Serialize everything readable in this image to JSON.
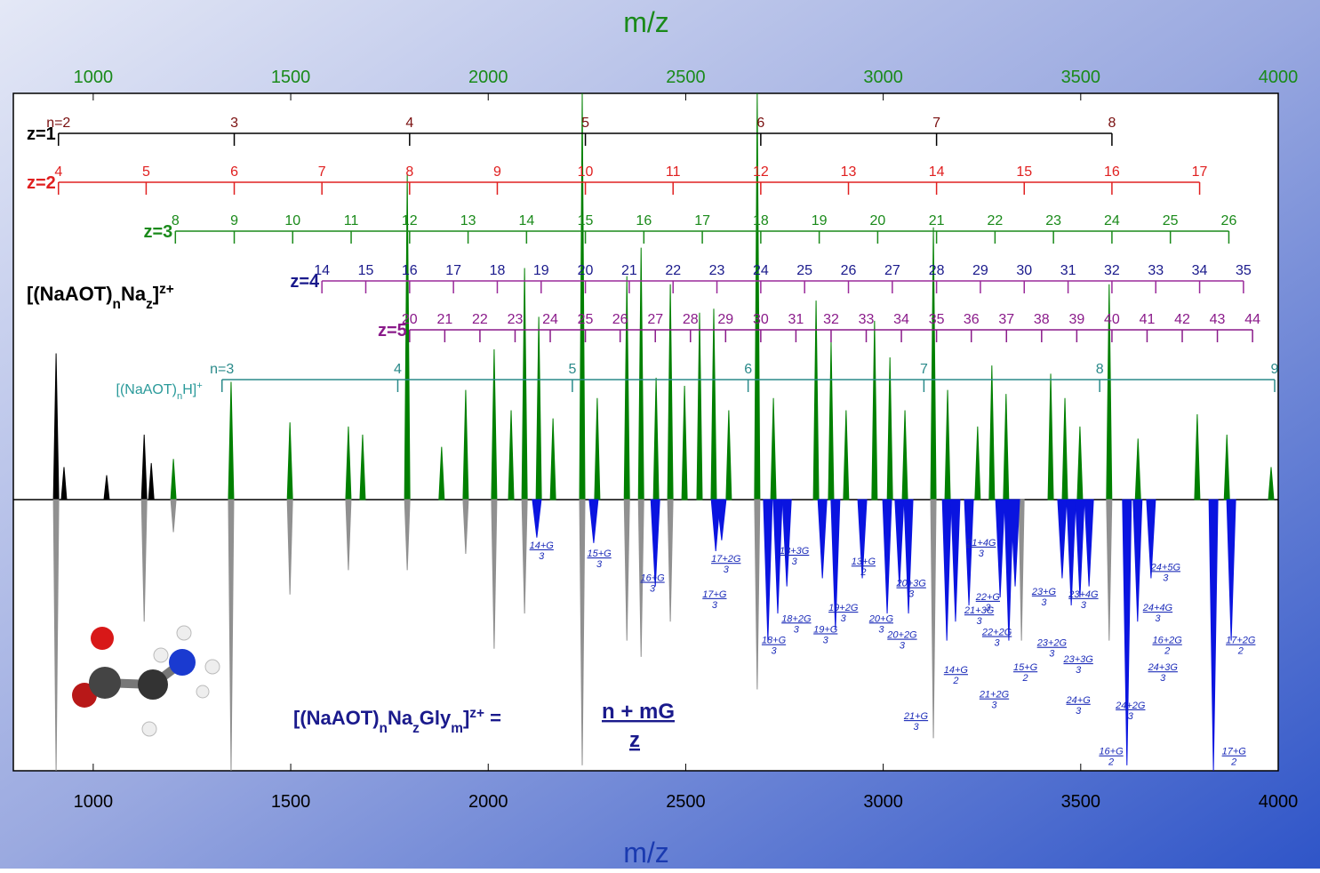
{
  "chart_data": [
    {
      "type": "spectrum",
      "xlabel": "m/z",
      "xlim": [
        800,
        4000
      ],
      "xticks": [
        1000,
        1500,
        2000,
        2500,
        3000,
        3500,
        4000
      ],
      "ylim": [
        0,
        100
      ],
      "series": [
        {
          "color": "#000000",
          "x": [
            906,
            926,
            1034,
            1129,
            1147
          ],
          "values": [
            36,
            8,
            6,
            16,
            9
          ]
        },
        {
          "color": "#008000",
          "x": [
            1203,
            1349,
            1498,
            1646,
            1682,
            1795,
            1882,
            1943,
            2015,
            2058,
            2092,
            2128,
            2164,
            2238,
            2276,
            2351,
            2387,
            2425,
            2461,
            2497,
            2535,
            2571,
            2609,
            2681,
            2722,
            2830,
            2868,
            2906,
            2978,
            3017,
            3055,
            3127,
            3163,
            3239,
            3275,
            3311,
            3424,
            3460,
            3498,
            3572,
            3645,
            3795,
            3870,
            3982
          ],
          "values": [
            10,
            29,
            19,
            18,
            16,
            80,
            13,
            27,
            37,
            22,
            57,
            45,
            20,
            100,
            25,
            55,
            62,
            30,
            53,
            28,
            46,
            47,
            22,
            100,
            25,
            49,
            39,
            22,
            44,
            35,
            22,
            67,
            27,
            18,
            33,
            26,
            31,
            25,
            18,
            53,
            15,
            21,
            16,
            8
          ]
        }
      ],
      "ladders": [
        {
          "label": "z=1",
          "color": "#000000",
          "label_color": "#000000",
          "number_color": "#7a1010",
          "x": [
            912,
            1357,
            1801,
            2246,
            2690,
            3135,
            3579
          ],
          "numbers": [
            "n=2",
            3,
            4,
            5,
            6,
            7,
            8
          ]
        },
        {
          "label": "z=2",
          "color": "#e02020",
          "label_color": "#e02020",
          "number_color": "#e02020",
          "x": [
            912,
            1134,
            1357,
            1579,
            1801,
            2023,
            2246,
            2468,
            2690,
            2912,
            3135,
            3357,
            3579,
            3801
          ],
          "numbers": [
            4,
            5,
            6,
            7,
            8,
            9,
            10,
            11,
            12,
            13,
            14,
            15,
            16,
            17
          ]
        },
        {
          "label": "z=3",
          "color": "#1a8a1a",
          "label_color": "#1a8a1a",
          "number_color": "#1a8a1a",
          "x": [
            1208,
            1357,
            1505,
            1653,
            1801,
            1949,
            2097,
            2246,
            2394,
            2542,
            2690,
            2838,
            2986,
            3135,
            3283,
            3431,
            3579,
            3727,
            3875
          ],
          "numbers": [
            8,
            9,
            10,
            11,
            12,
            13,
            14,
            15,
            16,
            17,
            18,
            19,
            20,
            21,
            22,
            23,
            24,
            25,
            26
          ]
        },
        {
          "label": "z=4",
          "color": "#9a2a9a",
          "label_color": "#1a1a8c",
          "number_color": "#1a1a8c",
          "x": [
            1579,
            1690,
            1801,
            1912,
            2023,
            2134,
            2246,
            2357,
            2468,
            2579,
            2690,
            2801,
            2912,
            3023,
            3135,
            3246,
            3357,
            3468,
            3579,
            3690,
            3801,
            3912
          ],
          "numbers": [
            14,
            15,
            16,
            17,
            18,
            19,
            20,
            21,
            22,
            23,
            24,
            25,
            26,
            27,
            28,
            29,
            30,
            31,
            32,
            33,
            34,
            35
          ]
        },
        {
          "label": "z=5",
          "color": "#8a1a8a",
          "label_color": "#8a1a8a",
          "number_color": "#8a1a8a",
          "x": [
            1801,
            1890,
            1979,
            2068,
            2157,
            2246,
            2334,
            2423,
            2512,
            2601,
            2690,
            2779,
            2868,
            2957,
            3046,
            3135,
            3223,
            3312,
            3401,
            3490,
            3579,
            3668,
            3757,
            3846,
            3935
          ],
          "numbers": [
            20,
            21,
            22,
            23,
            24,
            25,
            26,
            27,
            28,
            29,
            30,
            31,
            32,
            33,
            34,
            35,
            36,
            37,
            38,
            39,
            40,
            41,
            42,
            43,
            44
          ]
        },
        {
          "label": [
            "[(NaAOT)",
            "n",
            "H]",
            "+"
          ],
          "color": "#2a8a8a",
          "label_color": "#2a9a9a",
          "number_color": "#2a8a8a",
          "x": [
            1326,
            1771,
            2213,
            2658,
            3103,
            3548,
            3991
          ],
          "numbers": [
            "n=3",
            4,
            5,
            6,
            7,
            8,
            9
          ]
        }
      ],
      "species": [
        "[(NaAOT)",
        "n",
        "Na",
        "z",
        "]",
        "z+"
      ]
    },
    {
      "type": "spectrum",
      "xlabel": "m/z",
      "xlim": [
        800,
        4000
      ],
      "xticks": [
        1000,
        1500,
        2000,
        2500,
        3000,
        3500,
        4000
      ],
      "ylim": [
        0,
        100
      ],
      "inverted": true,
      "series": [
        {
          "color": "#909090",
          "x": [
            906,
            1129,
            1203,
            1349,
            1498,
            1646,
            1795,
            1943,
            2015,
            2092,
            2238,
            2351,
            2387,
            2461,
            2681,
            3127,
            3350,
            3572
          ],
          "values": [
            100,
            45,
            12,
            100,
            35,
            26,
            26,
            20,
            55,
            42,
            98,
            52,
            58,
            45,
            70,
            88,
            52,
            52
          ]
        },
        {
          "color": "#0a14e0",
          "x": [
            2123,
            2267,
            2423,
            2576,
            2591,
            2708,
            2733,
            2756,
            2846,
            2879,
            2947,
            3010,
            3041,
            3064,
            3161,
            3183,
            3217,
            3296,
            3318,
            3334,
            3453,
            3476,
            3498,
            3521,
            3617,
            3644,
            3678,
            3836,
            3881
          ],
          "values": [
            14,
            16,
            32,
            19,
            15,
            52,
            42,
            32,
            29,
            48,
            29,
            42,
            32,
            42,
            52,
            45,
            39,
            36,
            52,
            32,
            29,
            39,
            36,
            32,
            98,
            45,
            29,
            100,
            52
          ]
        }
      ],
      "annotations": [
        {
          "numerator": "14+G",
          "denominator": "3",
          "x": 2135,
          "y": 18
        },
        {
          "numerator": "15+G",
          "denominator": "3",
          "x": 2281,
          "y": 21
        },
        {
          "numerator": "16+G",
          "denominator": "3",
          "x": 2416,
          "y": 30
        },
        {
          "numerator": "17+2G",
          "denominator": "3",
          "x": 2602,
          "y": 23
        },
        {
          "numerator": "17+G",
          "denominator": "3",
          "x": 2573,
          "y": 36
        },
        {
          "numerator": "18+3G",
          "denominator": "3",
          "x": 2775,
          "y": 20
        },
        {
          "numerator": "18+2G",
          "denominator": "3",
          "x": 2780,
          "y": 45
        },
        {
          "numerator": "18+G",
          "denominator": "3",
          "x": 2723,
          "y": 53
        },
        {
          "numerator": "19+2G",
          "denominator": "3",
          "x": 2899,
          "y": 41
        },
        {
          "numerator": "19+G",
          "denominator": "3",
          "x": 2854,
          "y": 49
        },
        {
          "numerator": "13+G",
          "denominator": "2",
          "x": 2950,
          "y": 24
        },
        {
          "numerator": "20+3G",
          "denominator": "3",
          "x": 3071,
          "y": 32
        },
        {
          "numerator": "20+G",
          "denominator": "3",
          "x": 2995,
          "y": 45
        },
        {
          "numerator": "20+2G",
          "denominator": "3",
          "x": 3048,
          "y": 51
        },
        {
          "numerator": "21+4G",
          "denominator": "3",
          "x": 3248,
          "y": 17
        },
        {
          "numerator": "21+3G",
          "denominator": "3",
          "x": 3243,
          "y": 42
        },
        {
          "numerator": "21+2G",
          "denominator": "3",
          "x": 3281,
          "y": 73
        },
        {
          "numerator": "21+G",
          "denominator": "3",
          "x": 3083,
          "y": 81
        },
        {
          "numerator": "14+G",
          "denominator": "2",
          "x": 3184,
          "y": 64
        },
        {
          "numerator": "22+G",
          "denominator": "3",
          "x": 3265,
          "y": 37
        },
        {
          "numerator": "22+2G",
          "denominator": "3",
          "x": 3288,
          "y": 50
        },
        {
          "numerator": "15+G",
          "denominator": "2",
          "x": 3360,
          "y": 63
        },
        {
          "numerator": "23+G",
          "denominator": "3",
          "x": 3407,
          "y": 35
        },
        {
          "numerator": "23+2G",
          "denominator": "3",
          "x": 3427,
          "y": 54
        },
        {
          "numerator": "23+3G",
          "denominator": "3",
          "x": 3494,
          "y": 60
        },
        {
          "numerator": "23+4G",
          "denominator": "3",
          "x": 3507,
          "y": 36
        },
        {
          "numerator": "24+G",
          "denominator": "3",
          "x": 3494,
          "y": 75
        },
        {
          "numerator": "24+2G",
          "denominator": "3",
          "x": 3626,
          "y": 77
        },
        {
          "numerator": "16+G",
          "denominator": "2",
          "x": 3577,
          "y": 94
        },
        {
          "numerator": "16+2G",
          "denominator": "2",
          "x": 3719,
          "y": 53
        },
        {
          "numerator": "24+3G",
          "denominator": "3",
          "x": 3708,
          "y": 63
        },
        {
          "numerator": "24+4G",
          "denominator": "3",
          "x": 3695,
          "y": 41
        },
        {
          "numerator": "24+5G",
          "denominator": "3",
          "x": 3715,
          "y": 26
        },
        {
          "numerator": "17+2G",
          "denominator": "2",
          "x": 3905,
          "y": 53
        },
        {
          "numerator": "17+G",
          "denominator": "2",
          "x": 3888,
          "y": 94
        }
      ],
      "formula": {
        "species": [
          "[(NaAOT)",
          "n",
          "Na",
          "z",
          "Gly",
          "m",
          "]",
          "z+",
          " ="
        ],
        "numerator": "n + mG",
        "denominator": "z"
      }
    }
  ]
}
